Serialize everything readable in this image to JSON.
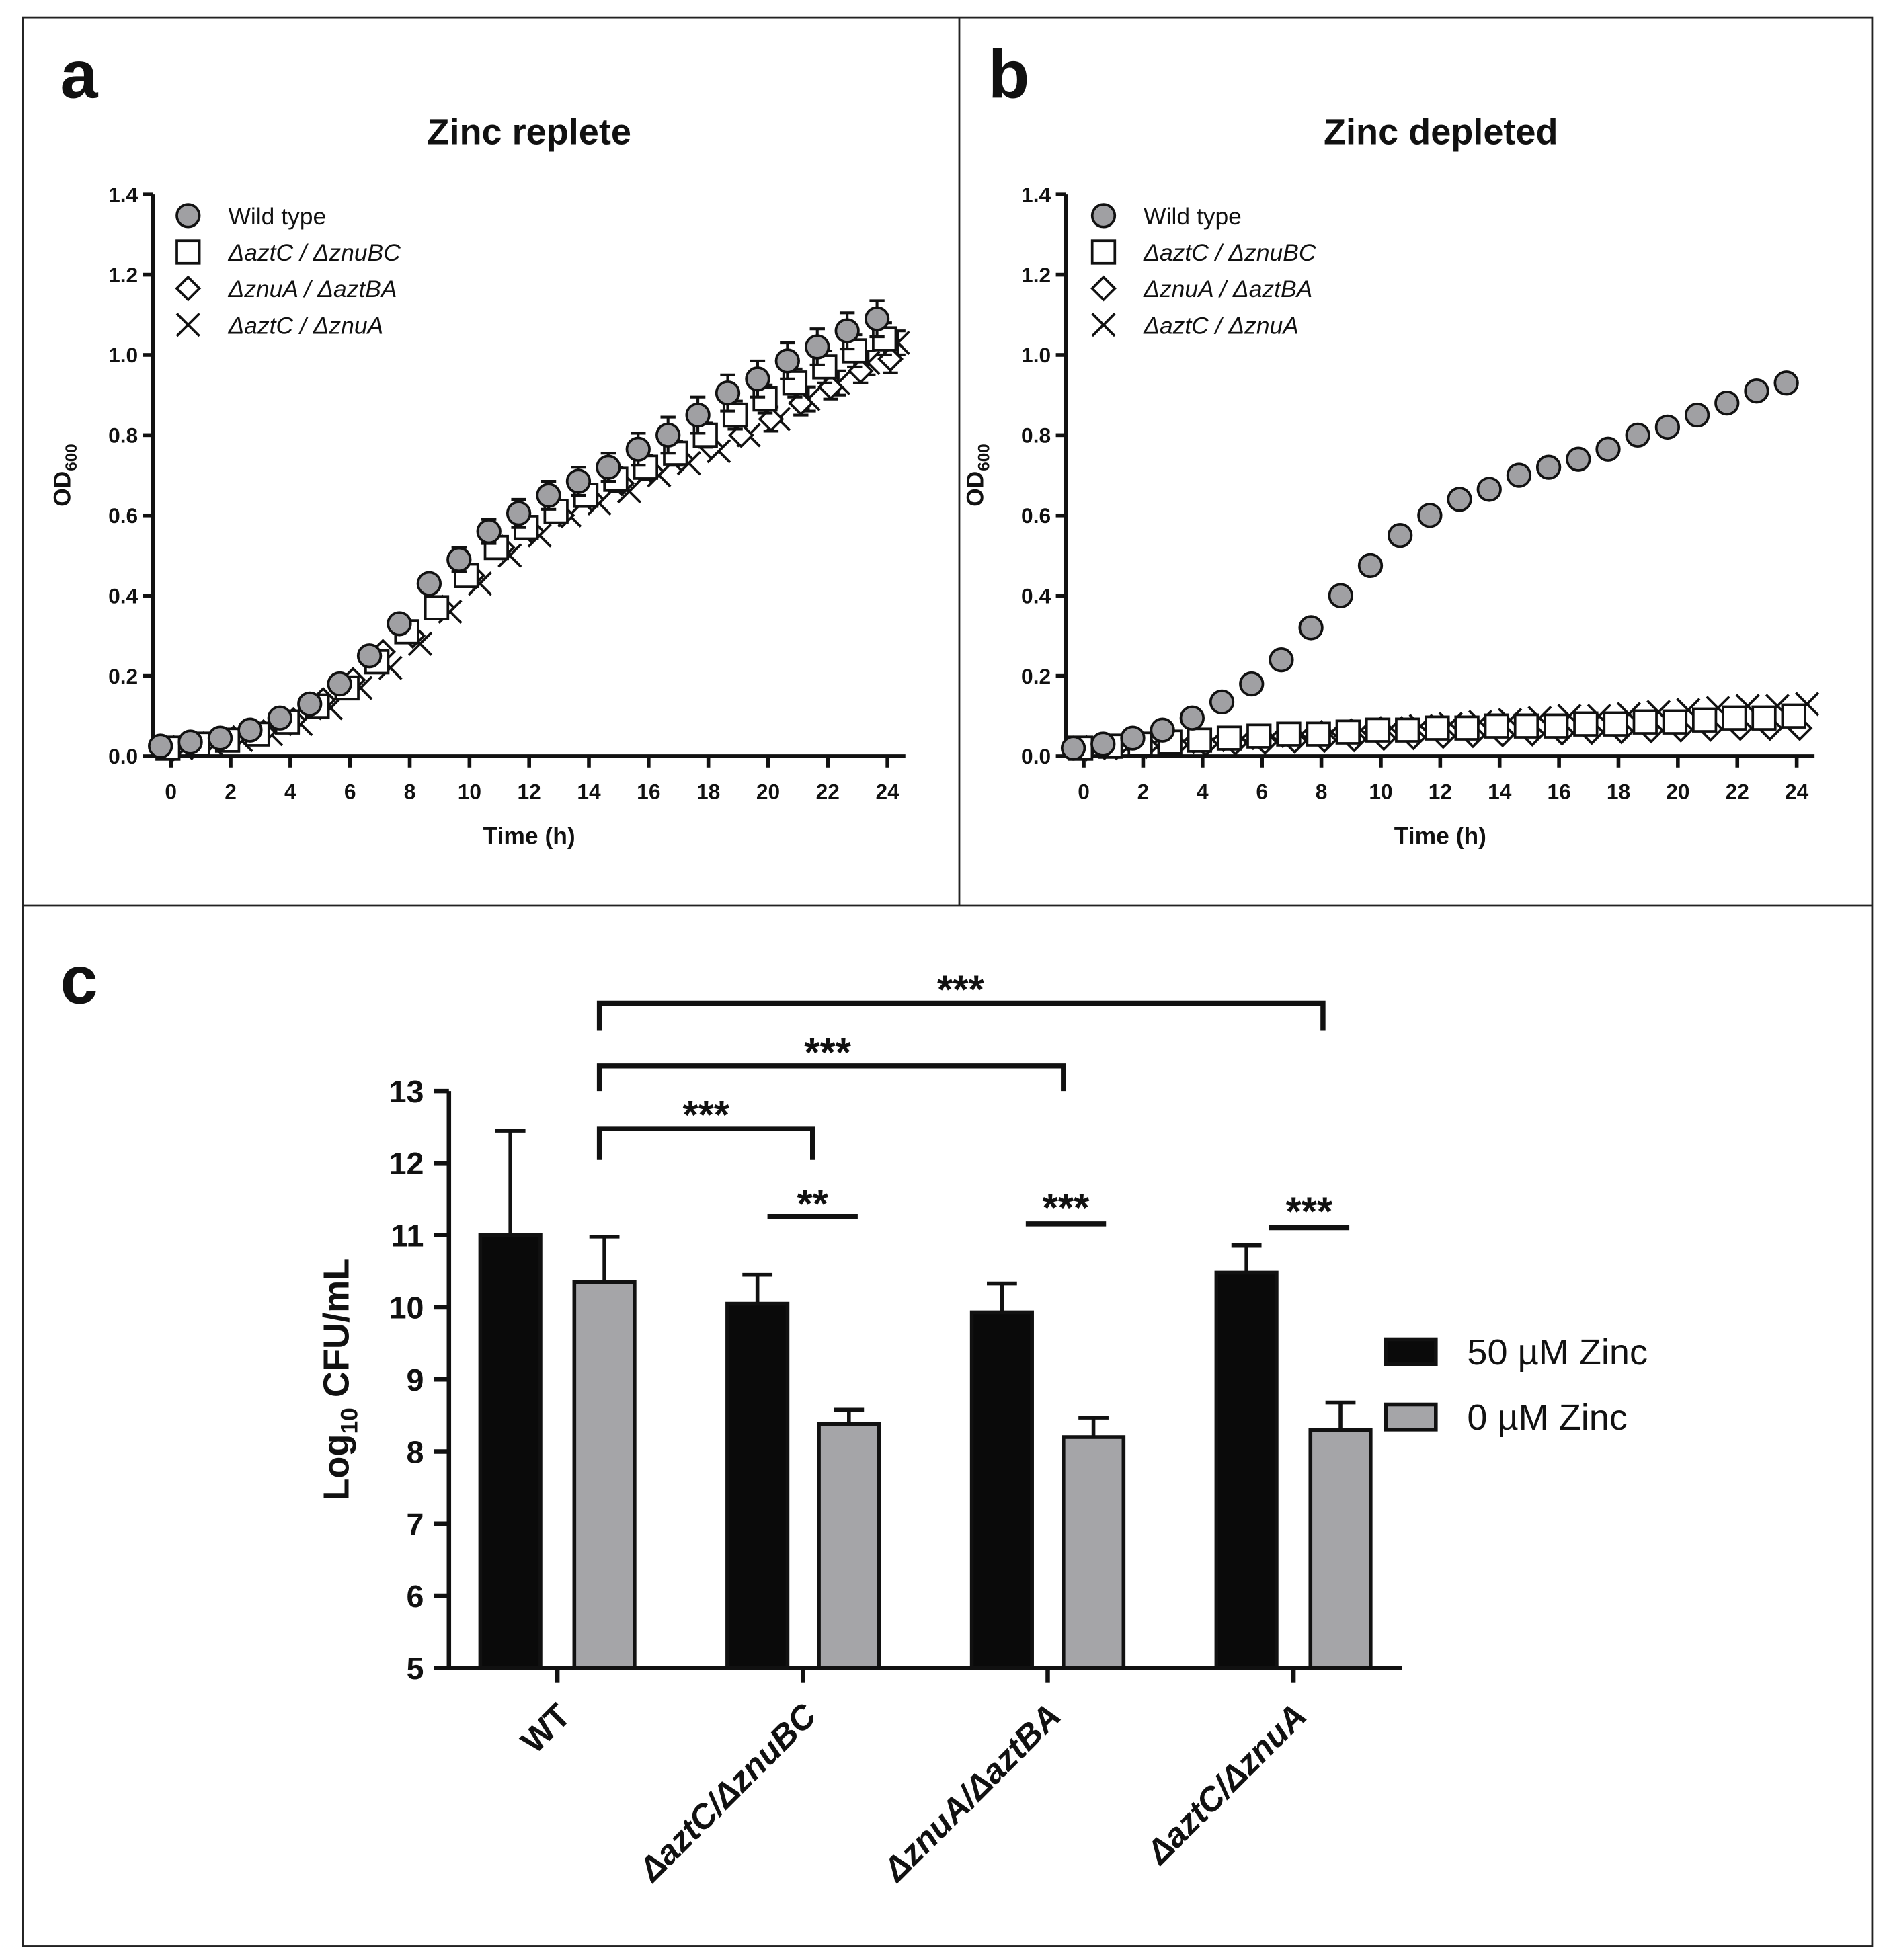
{
  "panel_letters": [
    "a",
    "b",
    "c"
  ],
  "chart_data": [
    {
      "panel": "a",
      "type": "scatter",
      "title": "Zinc replete",
      "xlabel": "Time (h)",
      "ylabel_main": "OD",
      "ylabel_sub": "600",
      "xlim": [
        -0.6,
        24.6
      ],
      "ylim": [
        0,
        1.4
      ],
      "xticks": [
        0,
        2,
        4,
        6,
        8,
        10,
        12,
        14,
        16,
        18,
        20,
        22,
        24
      ],
      "yticks": [
        "0.0",
        "0.2",
        "0.4",
        "0.6",
        "0.8",
        "1.0",
        "1.2",
        "1.4"
      ],
      "x": [
        0,
        1,
        2,
        3,
        4,
        5,
        6,
        7,
        8,
        9,
        10,
        11,
        12,
        13,
        14,
        15,
        16,
        17,
        18,
        19,
        20,
        21,
        22,
        23,
        24
      ],
      "series": [
        {
          "name": "ΔaztC / ΔznuA",
          "marker": "x",
          "values": [
            0.02,
            0.03,
            0.04,
            0.055,
            0.08,
            0.12,
            0.17,
            0.22,
            0.28,
            0.36,
            0.43,
            0.5,
            0.55,
            0.6,
            0.63,
            0.66,
            0.7,
            0.73,
            0.76,
            0.8,
            0.84,
            0.89,
            0.93,
            0.98,
            1.03
          ],
          "errors": [
            0.005,
            0.005,
            0.006,
            0.008,
            0.01,
            0.012,
            0.015,
            0.015,
            0.02,
            0.02,
            0.02,
            0.02,
            0.02,
            0.02,
            0.02,
            0.02,
            0.02,
            0.02,
            0.02,
            0.025,
            0.025,
            0.03,
            0.03,
            0.03,
            0.03
          ]
        },
        {
          "name": "ΔznuA / ΔaztBA",
          "marker": "diamond",
          "values": [
            0.02,
            0.03,
            0.045,
            0.06,
            0.09,
            0.14,
            0.19,
            0.26,
            0.3,
            0.37,
            0.45,
            0.52,
            0.56,
            0.6,
            0.64,
            0.68,
            0.71,
            0.74,
            0.77,
            0.8,
            0.84,
            0.88,
            0.92,
            0.96,
            0.99
          ],
          "errors": [
            0.005,
            0.005,
            0.006,
            0.008,
            0.01,
            0.012,
            0.015,
            0.015,
            0.02,
            0.02,
            0.02,
            0.02,
            0.02,
            0.02,
            0.02,
            0.02,
            0.02,
            0.02,
            0.025,
            0.025,
            0.03,
            0.03,
            0.03,
            0.03,
            0.035
          ]
        },
        {
          "name": "ΔaztC / ΔznuBC",
          "marker": "square",
          "values": [
            0.02,
            0.03,
            0.04,
            0.055,
            0.085,
            0.125,
            0.17,
            0.235,
            0.31,
            0.37,
            0.45,
            0.52,
            0.57,
            0.61,
            0.65,
            0.69,
            0.72,
            0.755,
            0.8,
            0.85,
            0.89,
            0.93,
            0.97,
            1.01,
            1.04
          ],
          "errors": [
            0.005,
            0.005,
            0.006,
            0.008,
            0.01,
            0.012,
            0.015,
            0.015,
            0.02,
            0.02,
            0.02,
            0.025,
            0.025,
            0.025,
            0.025,
            0.03,
            0.03,
            0.03,
            0.03,
            0.035,
            0.035,
            0.035,
            0.04,
            0.04,
            0.04
          ]
        },
        {
          "name": "Wild type",
          "marker": "circle",
          "values": [
            0.025,
            0.035,
            0.045,
            0.065,
            0.095,
            0.13,
            0.18,
            0.25,
            0.33,
            0.43,
            0.49,
            0.56,
            0.605,
            0.65,
            0.685,
            0.72,
            0.765,
            0.8,
            0.85,
            0.905,
            0.94,
            0.985,
            1.02,
            1.06,
            1.09
          ],
          "errors": [
            0.005,
            0.005,
            0.006,
            0.008,
            0.01,
            0.012,
            0.015,
            0.015,
            0.02,
            0.02,
            0.03,
            0.03,
            0.035,
            0.035,
            0.035,
            0.035,
            0.04,
            0.045,
            0.045,
            0.045,
            0.045,
            0.045,
            0.045,
            0.045,
            0.045
          ]
        }
      ]
    },
    {
      "panel": "b",
      "type": "scatter",
      "title": "Zinc depleted",
      "xlabel": "Time (h)",
      "ylabel_main": "OD",
      "ylabel_sub": "600",
      "xlim": [
        -0.6,
        24.6
      ],
      "ylim": [
        0,
        1.4
      ],
      "xticks": [
        0,
        2,
        4,
        6,
        8,
        10,
        12,
        14,
        16,
        18,
        20,
        22,
        24
      ],
      "yticks": [
        "0.0",
        "0.2",
        "0.4",
        "0.6",
        "0.8",
        "1.0",
        "1.2",
        "1.4"
      ],
      "x": [
        0,
        1,
        2,
        3,
        4,
        5,
        6,
        7,
        8,
        9,
        10,
        11,
        12,
        13,
        14,
        15,
        16,
        17,
        18,
        19,
        20,
        21,
        22,
        23,
        24
      ],
      "series": [
        {
          "name": "ΔaztC / ΔznuA",
          "marker": "x",
          "values": [
            0.02,
            0.025,
            0.03,
            0.035,
            0.04,
            0.045,
            0.05,
            0.055,
            0.06,
            0.065,
            0.07,
            0.075,
            0.08,
            0.085,
            0.09,
            0.095,
            0.1,
            0.1,
            0.105,
            0.11,
            0.115,
            0.12,
            0.125,
            0.125,
            0.13
          ],
          "errors": [
            0.003,
            0.003,
            0.004,
            0.004,
            0.005,
            0.005,
            0.005,
            0.006,
            0.006,
            0.006,
            0.007,
            0.007,
            0.008,
            0.008,
            0.008,
            0.009,
            0.01,
            0.01,
            0.01,
            0.012,
            0.012,
            0.012,
            0.013,
            0.013,
            0.014
          ]
        },
        {
          "name": "ΔznuA / ΔaztBA",
          "marker": "diamond",
          "values": [
            0.02,
            0.022,
            0.025,
            0.028,
            0.03,
            0.033,
            0.035,
            0.038,
            0.04,
            0.042,
            0.045,
            0.047,
            0.05,
            0.052,
            0.054,
            0.056,
            0.058,
            0.06,
            0.062,
            0.064,
            0.066,
            0.068,
            0.07,
            0.07,
            0.07
          ],
          "errors": [
            0.003,
            0.003,
            0.003,
            0.003,
            0.004,
            0.004,
            0.004,
            0.004,
            0.004,
            0.005,
            0.005,
            0.005,
            0.005,
            0.005,
            0.005,
            0.006,
            0.006,
            0.006,
            0.006,
            0.006,
            0.007,
            0.007,
            0.007,
            0.007,
            0.007
          ]
        },
        {
          "name": "ΔaztC / ΔznuBC",
          "marker": "square",
          "values": [
            0.02,
            0.025,
            0.03,
            0.035,
            0.04,
            0.045,
            0.05,
            0.055,
            0.055,
            0.06,
            0.065,
            0.065,
            0.07,
            0.07,
            0.075,
            0.075,
            0.075,
            0.08,
            0.08,
            0.085,
            0.085,
            0.09,
            0.095,
            0.095,
            0.1
          ],
          "errors": [
            0.003,
            0.003,
            0.003,
            0.004,
            0.004,
            0.004,
            0.005,
            0.005,
            0.005,
            0.005,
            0.006,
            0.006,
            0.006,
            0.006,
            0.007,
            0.007,
            0.007,
            0.008,
            0.008,
            0.008,
            0.009,
            0.009,
            0.01,
            0.01,
            0.01
          ]
        },
        {
          "name": "Wild type",
          "marker": "circle",
          "values": [
            0.02,
            0.03,
            0.045,
            0.065,
            0.095,
            0.135,
            0.18,
            0.24,
            0.32,
            0.4,
            0.475,
            0.55,
            0.6,
            0.64,
            0.665,
            0.7,
            0.72,
            0.74,
            0.765,
            0.8,
            0.82,
            0.85,
            0.88,
            0.91,
            0.93
          ],
          "errors": [
            0.004,
            0.004,
            0.005,
            0.005,
            0.006,
            0.006,
            0.007,
            0.008,
            0.008,
            0.009,
            0.01,
            0.01,
            0.01,
            0.01,
            0.01,
            0.012,
            0.012,
            0.012,
            0.015,
            0.025,
            0.025,
            0.025,
            0.02,
            0.02,
            0.015
          ]
        }
      ]
    },
    {
      "panel": "c",
      "type": "bar",
      "ylabel_main": "Log",
      "ylabel_sub": "10",
      "ylabel_rest": " CFU/mL",
      "ylim": [
        5,
        13
      ],
      "yticks": [
        5,
        6,
        7,
        8,
        9,
        10,
        11,
        12,
        13
      ],
      "categories": [
        "WT",
        "ΔaztC/ΔznuBC",
        "ΔznuA/ΔaztBA",
        "ΔaztC/ΔznuA"
      ],
      "series": [
        {
          "name": "50 µM Zinc",
          "color": "#0a0a0a",
          "values": [
            11.0,
            10.05,
            9.93,
            10.48
          ],
          "errors": [
            1.45,
            0.4,
            0.4,
            0.38
          ]
        },
        {
          "name": "0 µM Zinc",
          "color": "#a5a5a8",
          "values": [
            10.35,
            8.38,
            8.2,
            8.3
          ],
          "errors": [
            0.63,
            0.2,
            0.27,
            0.38
          ]
        }
      ],
      "legend_position": "right",
      "significance": [
        {
          "label": "***",
          "from": "WT 0 µM",
          "to": "ΔaztC/ΔznuA 0 µM"
        },
        {
          "label": "***",
          "from": "WT 0 µM",
          "to": "ΔznuA/ΔaztBA 0 µM"
        },
        {
          "label": "***",
          "from": "WT 0 µM",
          "to": "ΔaztC/ΔznuBC 0 µM"
        },
        {
          "label": "**",
          "from": "ΔaztC/ΔznuBC 50 µM",
          "to": "ΔaztC/ΔznuBC 0 µM"
        },
        {
          "label": "***",
          "from": "ΔznuA/ΔaztBA 50 µM",
          "to": "ΔznuA/ΔaztBA 0 µM"
        },
        {
          "label": "***",
          "from": "ΔaztC/ΔznuA 50 µM",
          "to": "ΔaztC/ΔznuA 0 µM"
        }
      ]
    }
  ]
}
